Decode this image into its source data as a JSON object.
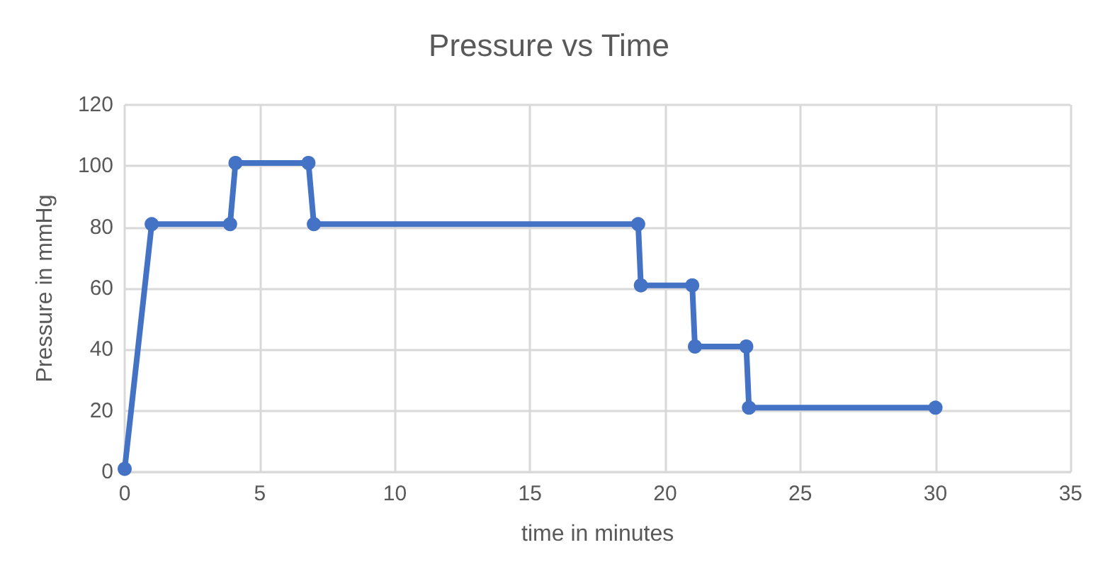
{
  "chart_data": {
    "type": "line",
    "title": "Pressure vs Time",
    "xlabel": "time in minutes",
    "ylabel": "Pressure in mmHg",
    "series": [
      {
        "color": "#4472c4",
        "x": [
          0,
          1,
          3.9,
          4.1,
          6.8,
          7,
          19,
          19.1,
          21,
          21.1,
          23,
          23.1,
          30
        ],
        "values": [
          1,
          81,
          81,
          101,
          101,
          81,
          81,
          61,
          61,
          41,
          41,
          21,
          21
        ]
      }
    ],
    "xlim": [
      0,
      35
    ],
    "xticks": [
      0,
      5,
      10,
      15,
      20,
      25,
      30,
      35
    ],
    "ylim": [
      0,
      120
    ],
    "yticks": [
      0,
      20,
      40,
      60,
      80,
      100,
      120
    ],
    "grid": true,
    "marker": "circle",
    "line_style": "solid"
  }
}
